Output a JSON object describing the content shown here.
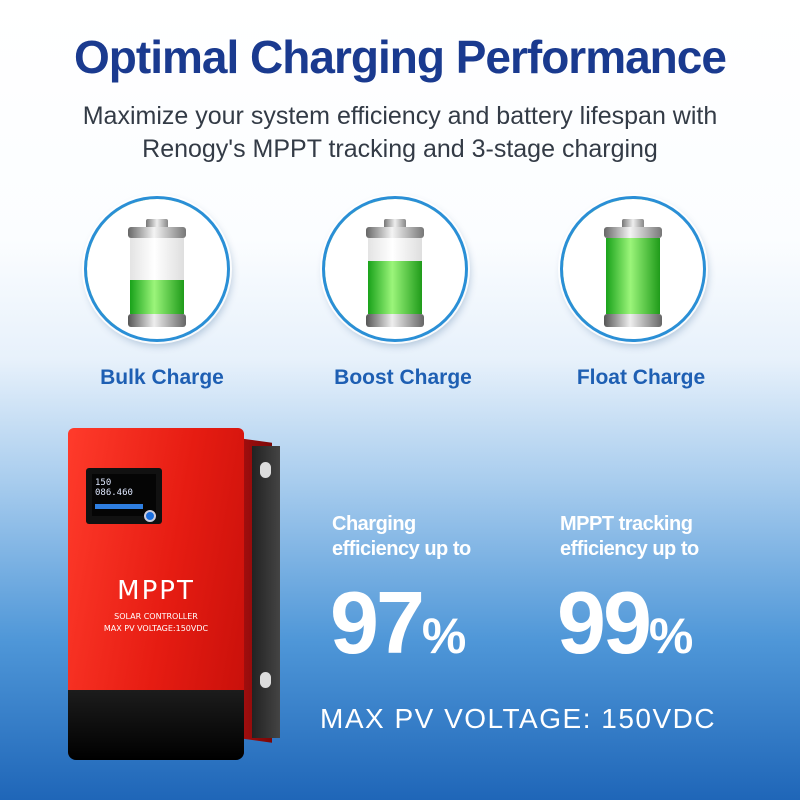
{
  "header": {
    "title": "Optimal Charging Performance",
    "subtitle_line1": "Maximize your system efficiency and battery lifespan with",
    "subtitle_line2": "Renogy's MPPT tracking and 3-stage charging"
  },
  "stages": [
    {
      "label": "Bulk Charge",
      "icon": "battery-half-icon",
      "fill_percent": 45
    },
    {
      "label": "Boost Charge",
      "icon": "battery-high-icon",
      "fill_percent": 70
    },
    {
      "label": "Float Charge",
      "icon": "battery-full-icon",
      "fill_percent": 100
    }
  ],
  "device": {
    "brand": "MPPT",
    "line1": "SOLAR CONTROLLER",
    "line2": "MAX PV VOLTAGE:150VDC",
    "screen_reading": "150 086.460"
  },
  "stats": [
    {
      "caption_line1": "Charging",
      "caption_line2": "efficiency up to",
      "value": "97",
      "unit": "%"
    },
    {
      "caption_line1": "MPPT tracking",
      "caption_line2": "efficiency up to",
      "value": "99",
      "unit": "%"
    }
  ],
  "footer": {
    "text": "MAX  PV  VOLTAGE: 150VDC"
  },
  "colors": {
    "title": "#1a3a8f",
    "label": "#1e5fb3",
    "battery_green": "#1fb81f",
    "device_red": "#e61c12"
  }
}
